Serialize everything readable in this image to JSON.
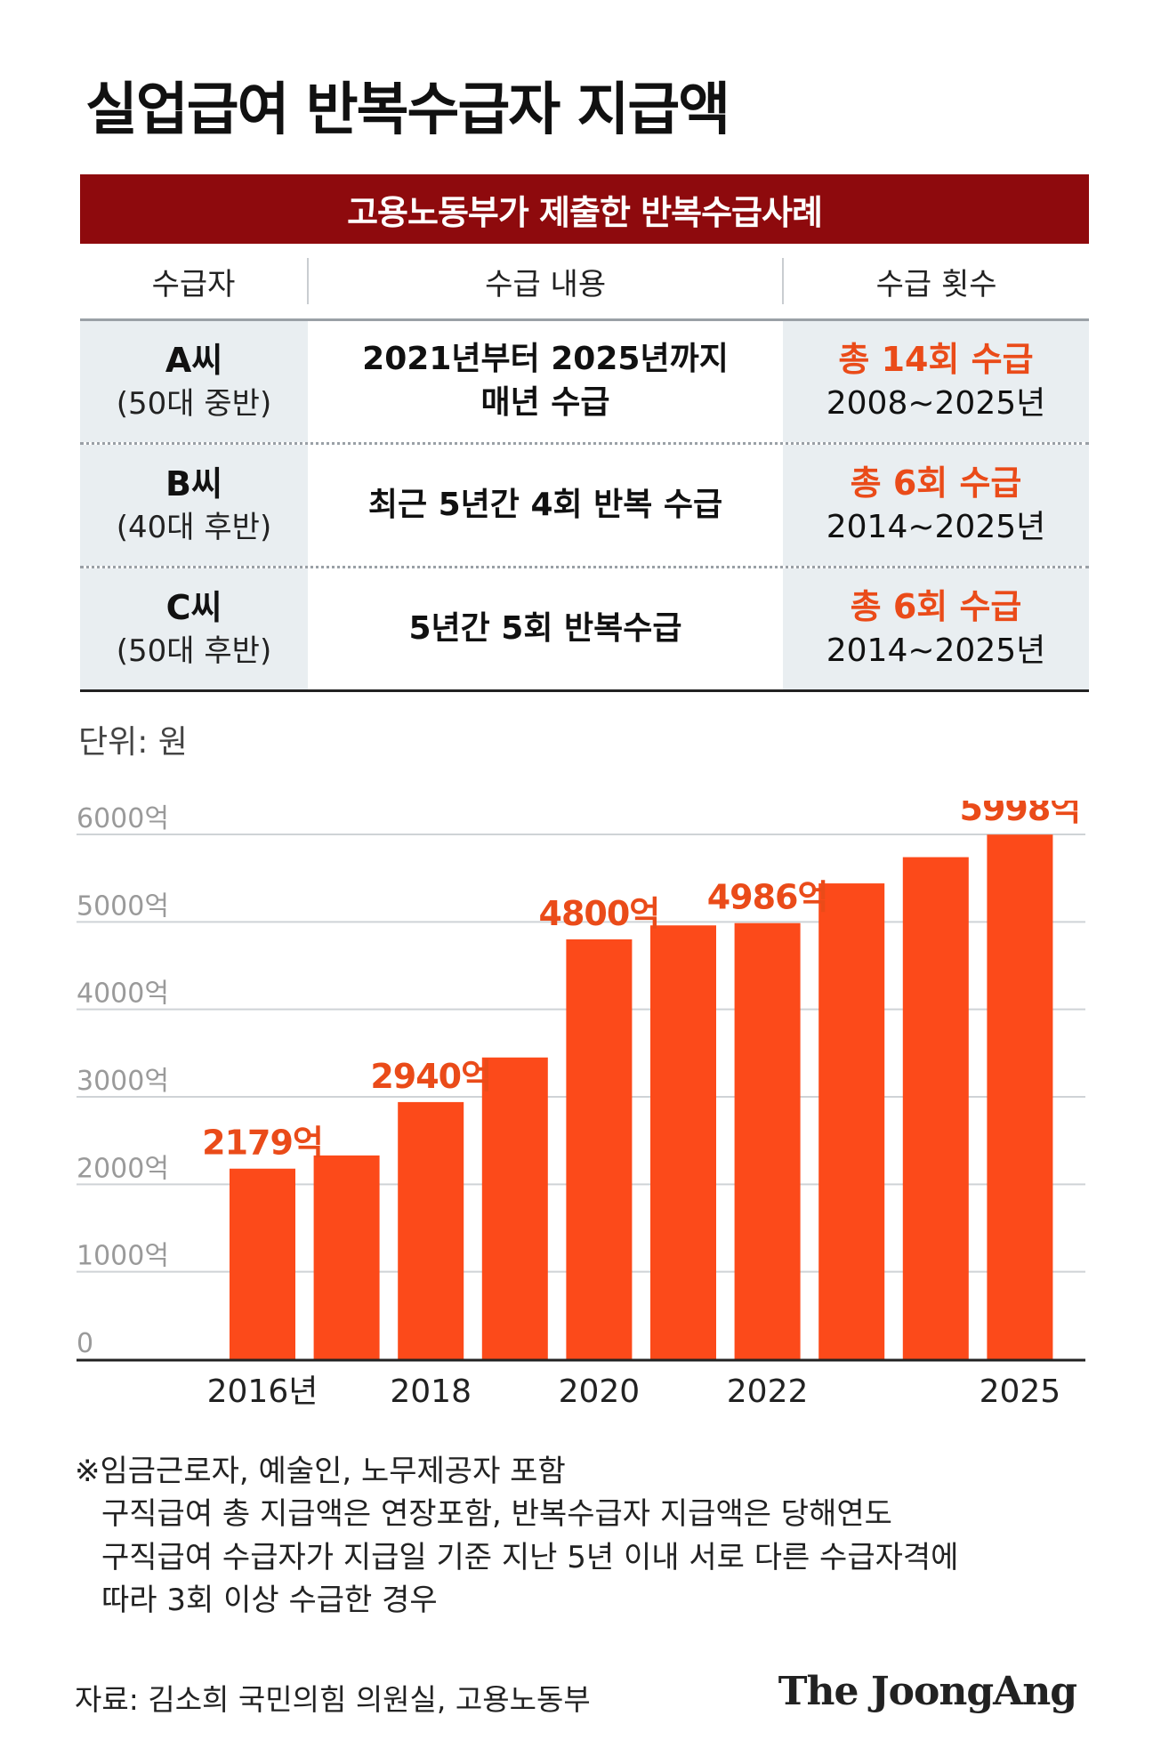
{
  "title": "실업급여 반복수급자 지급액",
  "table": {
    "banner": "고용노동부가 제출한 반복수급사례",
    "headers": [
      "수급자",
      "수급 내용",
      "수급 횟수"
    ],
    "rows": [
      {
        "name": "A씨",
        "age": "(50대 중반)",
        "content": [
          "2021년부터 2025년까지",
          "매년 수급"
        ],
        "count": "총 14회 수급",
        "period": "2008~2025년"
      },
      {
        "name": "B씨",
        "age": "(40대 후반)",
        "content": [
          "최근 5년간 4회 반복 수급"
        ],
        "count": "총 6회 수급",
        "period": "2014~2025년"
      },
      {
        "name": "C씨",
        "age": "(50대 후반)",
        "content": [
          "5년간 5회 반복수급"
        ],
        "count": "총 6회 수급",
        "period": "2014~2025년"
      }
    ]
  },
  "unit_label": "단위: 원",
  "colors": {
    "bar": "#fc4a1a",
    "label": "#ea4b19",
    "banner": "#8e0a0d",
    "grid": "#cfd3d6",
    "tick_text": "#9a9a9a"
  },
  "chart_data": {
    "type": "bar",
    "categories": [
      "2016",
      "2017",
      "2018",
      "2019",
      "2020",
      "2021",
      "2022",
      "2023",
      "2024",
      "2025"
    ],
    "values": [
      2179,
      2330,
      2940,
      3450,
      4800,
      4960,
      4986,
      5440,
      5740,
      5998
    ],
    "x_tick_labels": [
      {
        "index": 0,
        "text": "2016년"
      },
      {
        "index": 2,
        "text": "2018"
      },
      {
        "index": 4,
        "text": "2020"
      },
      {
        "index": 6,
        "text": "2022"
      },
      {
        "index": 9,
        "text": "2025"
      }
    ],
    "data_labels": [
      {
        "index": 0,
        "text": "2179억"
      },
      {
        "index": 2,
        "text": "2940억"
      },
      {
        "index": 4,
        "text": "4800억"
      },
      {
        "index": 6,
        "text": "4986억"
      },
      {
        "index": 9,
        "text": "5998억"
      }
    ],
    "y_ticks": [
      {
        "value": 0,
        "text": "0"
      },
      {
        "value": 1000,
        "text": "1000억"
      },
      {
        "value": 2000,
        "text": "2000억"
      },
      {
        "value": 3000,
        "text": "3000억"
      },
      {
        "value": 4000,
        "text": "4000억"
      },
      {
        "value": 5000,
        "text": "5000억"
      },
      {
        "value": 6000,
        "text": "6000억"
      }
    ],
    "ylim": [
      0,
      6000
    ],
    "grid": true
  },
  "footnote": [
    "※임금근로자, 예술인, 노무제공자 포함",
    "구직급여 총 지급액은 연장포함, 반복수급자 지급액은 당해연도",
    "구직급여 수급자가 지급일 기준 지난 5년 이내 서로 다른 수급자격에",
    "따라 3회 이상 수급한 경우"
  ],
  "source": "자료: 김소희 국민의힘 의원실, 고용노동부",
  "brand": "The JoongAng"
}
